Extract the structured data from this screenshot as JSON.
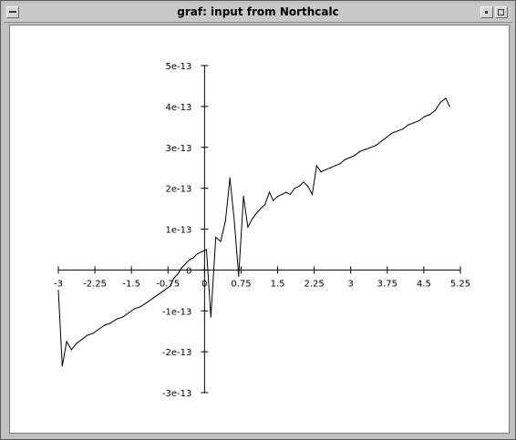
{
  "window": {
    "title": "graf:  input from Northcalc"
  },
  "icons": {
    "menu": "window-menu-icon",
    "minimize": "minimize-icon",
    "maximize": "maximize-icon"
  },
  "colors": {
    "plot_line": "#000000",
    "background": "#ffffff",
    "frame": "#c0c0c0"
  },
  "chart_data": {
    "type": "line",
    "title": "",
    "xlabel": "",
    "ylabel": "",
    "xlim": [
      -3,
      5.25
    ],
    "ylim": [
      -3e-13,
      5e-13
    ],
    "x_ticks": [
      "-3",
      "-2.25",
      "-1.5",
      "-0.75",
      "0",
      "0.75",
      "1.5",
      "2.25",
      "3",
      "3.75",
      "4.5",
      "5.25"
    ],
    "y_ticks": [
      "5e-13",
      "4e-13",
      "3e-13",
      "2e-13",
      "1e-13",
      "0",
      "-1e-13",
      "-2e-13",
      "-3e-13"
    ],
    "grid": false,
    "series": [
      {
        "x": [
          -3.0,
          -2.92,
          -2.83,
          -2.73,
          -2.63,
          -2.52,
          -2.41,
          -2.29,
          -2.17,
          -2.05,
          -1.93,
          -1.8,
          -1.68,
          -1.56,
          -1.44,
          -1.32,
          -1.19,
          -1.07,
          -0.95,
          -0.83,
          -0.71,
          -0.63,
          -0.55,
          -0.47,
          -0.39,
          -0.31,
          -0.23,
          -0.14,
          -0.05,
          0.04,
          0.13,
          0.23,
          0.33,
          0.43,
          0.52,
          0.61,
          0.7,
          0.8,
          0.89,
          0.98,
          1.07,
          1.15,
          1.24,
          1.33,
          1.41,
          1.5,
          1.59,
          1.67,
          1.76,
          1.85,
          1.94,
          2.03,
          2.12,
          2.21,
          2.3,
          2.39,
          2.48,
          2.58,
          2.68,
          2.78,
          2.88,
          2.98,
          3.08,
          3.19,
          3.3,
          3.41,
          3.52,
          3.63,
          3.74,
          3.85,
          3.96,
          4.07,
          4.18,
          4.29,
          4.4,
          4.51,
          4.62,
          4.73,
          4.84,
          4.95,
          5.03
        ],
        "y": [
          -5e-14,
          -2.35e-13,
          -1.75e-13,
          -1.95e-13,
          -1.8e-13,
          -1.7e-13,
          -1.6e-13,
          -1.55e-13,
          -1.45e-13,
          -1.35e-13,
          -1.3e-13,
          -1.2e-13,
          -1.15e-13,
          -1.05e-13,
          -9.5e-14,
          -9e-14,
          -8e-14,
          -7e-14,
          -6e-14,
          -5e-14,
          -4e-14,
          -2e-14,
          -1e-14,
          5e-15,
          1.5e-14,
          2.5e-14,
          3e-14,
          4e-14,
          4.5e-14,
          5e-14,
          -1.15e-13,
          8e-14,
          7e-14,
          1.2e-13,
          2.25e-13,
          1.2e-13,
          -1.5e-14,
          1.8e-13,
          1.05e-13,
          1.25e-13,
          1.4e-13,
          1.5e-13,
          1.6e-13,
          1.9e-13,
          1.7e-13,
          1.8e-13,
          1.85e-13,
          1.9e-13,
          1.85e-13,
          2e-13,
          2.05e-13,
          2.15e-13,
          2.05e-13,
          1.85e-13,
          2.55e-13,
          2.4e-13,
          2.45e-13,
          2.5e-13,
          2.55e-13,
          2.6e-13,
          2.7e-13,
          2.75e-13,
          2.8e-13,
          2.9e-13,
          2.95e-13,
          3e-13,
          3.05e-13,
          3.15e-13,
          3.25e-13,
          3.35e-13,
          3.4e-13,
          3.45e-13,
          3.55e-13,
          3.6e-13,
          3.65e-13,
          3.75e-13,
          3.8e-13,
          3.9e-13,
          4.1e-13,
          4.2e-13,
          4e-13
        ]
      }
    ]
  }
}
